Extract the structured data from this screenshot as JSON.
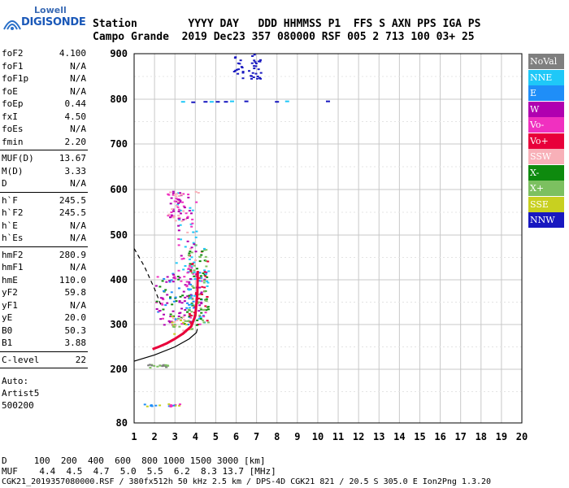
{
  "logo": {
    "top": "Lowell",
    "main": "DIGISONDE"
  },
  "header": {
    "row1": "Station        YYYY DAY   DDD HHMMSS P1  FFS S AXN PPS IGA PS",
    "row2": "Campo Grande  2019 Dec23 357 080000 RSF 005 2 713 100 03+ 25"
  },
  "params": {
    "g1": [
      {
        "k": "foF2",
        "v": "4.100"
      },
      {
        "k": "foF1",
        "v": "N/A"
      },
      {
        "k": "foF1p",
        "v": "N/A"
      },
      {
        "k": "foE",
        "v": "N/A"
      },
      {
        "k": "foEp",
        "v": "0.44"
      },
      {
        "k": "fxI",
        "v": "4.50"
      },
      {
        "k": "foEs",
        "v": "N/A"
      },
      {
        "k": "fmin",
        "v": "2.20"
      }
    ],
    "g2": [
      {
        "k": "MUF(D)",
        "v": "13.67"
      },
      {
        "k": "M(D)",
        "v": "3.33"
      },
      {
        "k": "D",
        "v": "N/A"
      }
    ],
    "g3": [
      {
        "k": "h`F",
        "v": "245.5"
      },
      {
        "k": "h`F2",
        "v": "245.5"
      },
      {
        "k": "h`E",
        "v": "N/A"
      },
      {
        "k": "h`Es",
        "v": "N/A"
      }
    ],
    "g4": [
      {
        "k": "hmF2",
        "v": "280.9"
      },
      {
        "k": "hmF1",
        "v": "N/A"
      },
      {
        "k": "hmE",
        "v": "110.0"
      },
      {
        "k": "yF2",
        "v": "59.8"
      },
      {
        "k": "yF1",
        "v": "N/A"
      },
      {
        "k": "yE",
        "v": "20.0"
      },
      {
        "k": "B0",
        "v": "50.3"
      },
      {
        "k": "B1",
        "v": "3.88"
      }
    ],
    "g5": [
      {
        "k": "C-level",
        "v": "22"
      }
    ],
    "footer": [
      "Auto:",
      "Artist5",
      "500200"
    ]
  },
  "legend": [
    {
      "label": "NoVal",
      "color": "#7f7f7f"
    },
    {
      "label": "NNE",
      "color": "#1fc8f8"
    },
    {
      "label": "E",
      "color": "#1f8ef8"
    },
    {
      "label": "W",
      "color": "#b000b0"
    },
    {
      "label": "Vo-",
      "color": "#f030c0"
    },
    {
      "label": "Vo+",
      "color": "#e8003a"
    },
    {
      "label": "SSW",
      "color": "#f8b0b8"
    },
    {
      "label": "X-",
      "color": "#0e8a0e"
    },
    {
      "label": "X+",
      "color": "#7cc060"
    },
    {
      "label": "SSE",
      "color": "#c8d020"
    },
    {
      "label": "NNW",
      "color": "#1818c0"
    }
  ],
  "bottom": {
    "row_d": "D     100  200  400  600  800 1000 1500 3000 [km]",
    "row_muf": "MUF    4.4  4.5  4.7  5.0  5.5  6.2  8.3 13.7 [MHz]",
    "footer": "CGK21_2019357080000.RSF / 380fx512h 50 kHz 2.5 km / DPS-4D CGK21 821 / 20.5 S 305.0 E Ion2Png 1.3.20"
  },
  "chart_data": {
    "type": "scatter",
    "xlim": [
      1,
      20
    ],
    "ylim": [
      80,
      900
    ],
    "x_ticks": [
      "1",
      "2",
      "3",
      "4",
      "5",
      "6",
      "7",
      "8",
      "9",
      "10",
      "11",
      "12",
      "13",
      "14",
      "15",
      "16",
      "17",
      "18",
      "19",
      "20"
    ],
    "y_ticks": [
      "80",
      "200",
      "300",
      "400",
      "500",
      "600",
      "700",
      "800",
      "900"
    ],
    "grid": true,
    "legend_position": "right",
    "trace": [
      {
        "x": 1.9,
        "y": 245
      },
      {
        "x": 2.2,
        "y": 250
      },
      {
        "x": 2.6,
        "y": 258
      },
      {
        "x": 3.0,
        "y": 268
      },
      {
        "x": 3.4,
        "y": 280
      },
      {
        "x": 3.8,
        "y": 296
      },
      {
        "x": 4.0,
        "y": 320
      },
      {
        "x": 4.1,
        "y": 370
      },
      {
        "x": 4.12,
        "y": 420
      }
    ],
    "profile": [
      {
        "x": 1.0,
        "y": 218
      },
      {
        "x": 2.0,
        "y": 232
      },
      {
        "x": 3.0,
        "y": 250
      },
      {
        "x": 3.7,
        "y": 268
      },
      {
        "x": 4.05,
        "y": 282
      },
      {
        "x": 4.1,
        "y": 290
      }
    ],
    "profile_extrapolation": [
      {
        "x": 1.0,
        "y": 470
      },
      {
        "x": 1.5,
        "y": 430
      },
      {
        "x": 2.0,
        "y": 380
      },
      {
        "x": 2.3,
        "y": 345
      }
    ]
  }
}
